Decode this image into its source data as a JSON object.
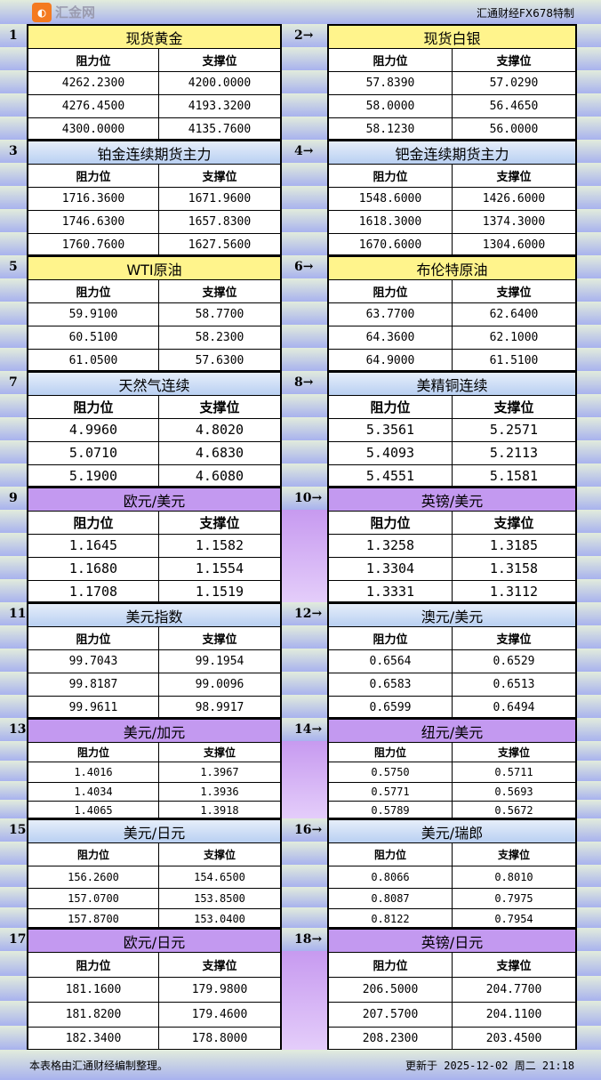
{
  "title": "汇通财经FX678特制",
  "footer_note": "本表格由汇通财经编制整理。",
  "footer_updated": "更新于 2025-12-02 周二 21:18",
  "watermark": "汇金网",
  "headers": {
    "resistance": "阻力位",
    "support": "支撑位"
  },
  "colors": {
    "yellow": "#fff48c",
    "blue": "#cfe0f5",
    "purple": "#c399f0"
  },
  "blocks": [
    {
      "no": "1",
      "name": "现货黄金",
      "style": "y",
      "rows": [
        [
          "4262.2300",
          "4200.0000"
        ],
        [
          "4276.4500",
          "4193.3200"
        ],
        [
          "4300.0000",
          "4135.7600"
        ]
      ]
    },
    {
      "no": "2→",
      "name": "现货白银",
      "style": "y",
      "rows": [
        [
          "57.8390",
          "57.0290"
        ],
        [
          "58.0000",
          "56.4650"
        ],
        [
          "58.1230",
          "56.0000"
        ]
      ]
    },
    {
      "no": "3",
      "name": "铂金连续期货主力",
      "style": "b",
      "rows": [
        [
          "1716.3600",
          "1671.9600"
        ],
        [
          "1746.6300",
          "1657.8300"
        ],
        [
          "1760.7600",
          "1627.5600"
        ]
      ]
    },
    {
      "no": "4→",
      "name": "钯金连续期货主力",
      "style": "b",
      "rows": [
        [
          "1548.6000",
          "1426.6000"
        ],
        [
          "1618.3000",
          "1374.3000"
        ],
        [
          "1670.6000",
          "1304.6000"
        ]
      ]
    },
    {
      "no": "5",
      "name": "WTI原油",
      "style": "y",
      "rows": [
        [
          "59.9100",
          "58.7700"
        ],
        [
          "60.5100",
          "58.2300"
        ],
        [
          "61.0500",
          "57.6300"
        ]
      ]
    },
    {
      "no": "6→",
      "name": "布伦特原油",
      "style": "y",
      "rows": [
        [
          "63.7700",
          "62.6400"
        ],
        [
          "64.3600",
          "62.1000"
        ],
        [
          "64.9000",
          "61.5100"
        ]
      ]
    },
    {
      "no": "7",
      "name": "天然气连续",
      "style": "b",
      "rows": [
        [
          "4.9960",
          "4.8020"
        ],
        [
          "5.0710",
          "4.6830"
        ],
        [
          "5.1900",
          "4.6080"
        ]
      ]
    },
    {
      "no": "8→",
      "name": "美精铜连续",
      "style": "b",
      "rows": [
        [
          "5.3561",
          "5.2571"
        ],
        [
          "5.4093",
          "5.2113"
        ],
        [
          "5.4551",
          "5.1581"
        ]
      ]
    },
    {
      "no": "9",
      "name": "欧元/美元",
      "style": "p",
      "rows": [
        [
          "1.1645",
          "1.1582"
        ],
        [
          "1.1680",
          "1.1554"
        ],
        [
          "1.1708",
          "1.1519"
        ]
      ]
    },
    {
      "no": "10→",
      "name": "英镑/美元",
      "style": "p",
      "rows": [
        [
          "1.3258",
          "1.3185"
        ],
        [
          "1.3304",
          "1.3158"
        ],
        [
          "1.3331",
          "1.3112"
        ]
      ]
    },
    {
      "no": "11",
      "name": "美元指数",
      "style": "b",
      "rows": [
        [
          "99.7043",
          "99.1954"
        ],
        [
          "99.8187",
          "99.0096"
        ],
        [
          "99.9611",
          "98.9917"
        ]
      ]
    },
    {
      "no": "12→",
      "name": "澳元/美元",
      "style": "b",
      "rows": [
        [
          "0.6564",
          "0.6529"
        ],
        [
          "0.6583",
          "0.6513"
        ],
        [
          "0.6599",
          "0.6494"
        ]
      ]
    },
    {
      "no": "13",
      "name": "美元/加元",
      "style": "p",
      "rows": [
        [
          "1.4016",
          "1.3967"
        ],
        [
          "1.4034",
          "1.3936"
        ],
        [
          "1.4065",
          "1.3918"
        ]
      ]
    },
    {
      "no": "14→",
      "name": "纽元/美元",
      "style": "p",
      "rows": [
        [
          "0.5750",
          "0.5711"
        ],
        [
          "0.5771",
          "0.5693"
        ],
        [
          "0.5789",
          "0.5672"
        ]
      ]
    },
    {
      "no": "15",
      "name": "美元/日元",
      "style": "b",
      "rows": [
        [
          "156.2600",
          "154.6500"
        ],
        [
          "157.0700",
          "153.8500"
        ],
        [
          "157.8700",
          "153.0400"
        ]
      ]
    },
    {
      "no": "16→",
      "name": "美元/瑞郎",
      "style": "b",
      "rows": [
        [
          "0.8066",
          "0.8010"
        ],
        [
          "0.8087",
          "0.7975"
        ],
        [
          "0.8122",
          "0.7954"
        ]
      ]
    },
    {
      "no": "17",
      "name": "欧元/日元",
      "style": "p",
      "rows": [
        [
          "181.1600",
          "179.9800"
        ],
        [
          "181.8200",
          "179.4600"
        ],
        [
          "182.3400",
          "178.8000"
        ]
      ]
    },
    {
      "no": "18→",
      "name": "英镑/日元",
      "style": "p",
      "rows": [
        [
          "206.5000",
          "204.7700"
        ],
        [
          "207.5700",
          "204.1100"
        ],
        [
          "208.2300",
          "203.4500"
        ]
      ]
    }
  ]
}
